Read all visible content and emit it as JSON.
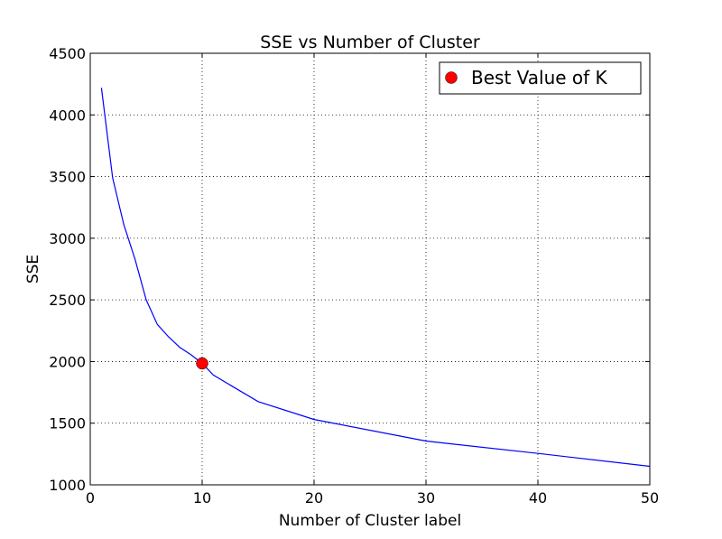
{
  "chart_data": {
    "type": "line",
    "title": "SSE vs Number of Cluster",
    "xlabel": "Number of Cluster label",
    "ylabel": "SSE",
    "xlim": [
      0,
      50
    ],
    "ylim": [
      1000,
      4500
    ],
    "xticks": [
      0,
      10,
      20,
      30,
      40,
      50
    ],
    "yticks": [
      1000,
      1500,
      2000,
      2500,
      3000,
      3500,
      4000,
      4500
    ],
    "grid": true,
    "legend_position": "top-right",
    "series": [
      {
        "color": "#0000ff",
        "x": [
          1,
          2,
          3,
          4,
          5,
          6,
          7,
          8,
          9,
          10,
          11,
          15,
          20,
          30,
          40,
          50
        ],
        "y": [
          4220,
          3490,
          3110,
          2830,
          2500,
          2300,
          2200,
          2115,
          2055,
          1985,
          1890,
          1675,
          1530,
          1355,
          1255,
          1150
        ]
      }
    ],
    "highlight": {
      "name": "Best Value of K",
      "color": "#ff0000",
      "x": 10,
      "y": 1985
    }
  }
}
